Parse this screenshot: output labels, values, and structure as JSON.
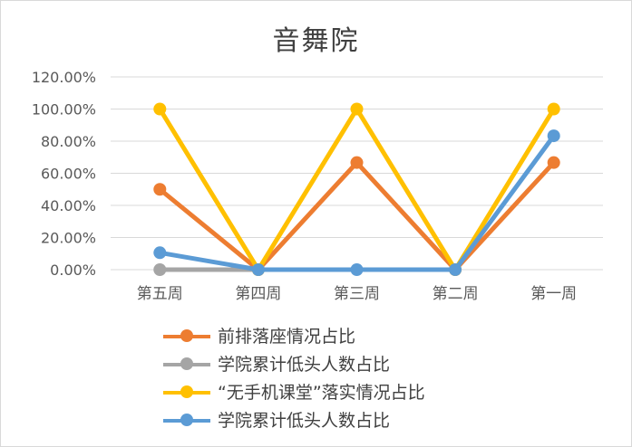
{
  "chart_data": {
    "type": "line",
    "title": "音舞院",
    "categories": [
      "第五周",
      "第四周",
      "第三周",
      "第二周",
      "第一周"
    ],
    "ylim": [
      0,
      120
    ],
    "yticks": [
      "0.00%",
      "20.00%",
      "40.00%",
      "60.00%",
      "80.00%",
      "100.00%",
      "120.00%"
    ],
    "grid": true,
    "legend_position": "bottom",
    "series": [
      {
        "name": "前排落座情况占比",
        "color": "#ED7D31",
        "values": [
          50,
          0,
          66.67,
          0,
          66.67
        ]
      },
      {
        "name": "学院累计低头人数占比",
        "color": "#A5A5A5",
        "values": [
          0,
          0,
          null,
          null,
          null
        ]
      },
      {
        "name": "“无手机课堂”落实情况占比",
        "color": "#FFC000",
        "values": [
          100,
          0,
          100,
          0,
          100
        ]
      },
      {
        "name": "学院累计低头人数占比",
        "color": "#5B9BD5",
        "values": [
          10.53,
          0,
          0,
          0,
          83.33
        ]
      }
    ]
  }
}
